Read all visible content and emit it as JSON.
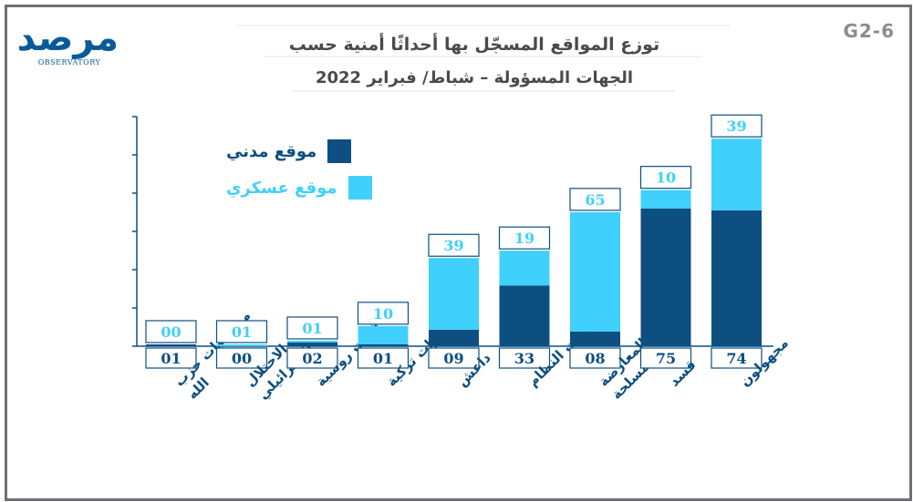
{
  "chart_code": "G2-6",
  "logo": {
    "word": "مرصد",
    "sub": "OBSERVATORY"
  },
  "title_line1": "توزع المواقع المسجّل بها أحداثًا أمنية حسب",
  "title_line2": "الجهات المسؤولة – شباط/ فبراير 2022",
  "colors": {
    "civil": "#0c4f80",
    "military": "#3fd0fc",
    "label_border": "#0c4f80",
    "military_text": "#3fd0fc",
    "axis": "#0c4f80"
  },
  "chart_data": {
    "type": "bar",
    "stacked": true,
    "categories": [
      "ميليشيات حزب الله",
      "الاحتلال الإسرائيلي",
      "قوات روسية",
      "قوات تركية",
      "داعش",
      "قوات النظام",
      "قوات المعارضة المسلحة",
      "قسد",
      "مجهولون"
    ],
    "series": [
      {
        "name": "موقع مدني",
        "values": [
          "01",
          "00",
          "02",
          "01",
          "09",
          "33",
          "08",
          "75",
          "74"
        ]
      },
      {
        "name": "موقع عسكري",
        "values": [
          "00",
          "01",
          "01",
          "10",
          "39",
          "19",
          "65",
          "10",
          "39"
        ]
      }
    ],
    "ylim": [
      0,
      125
    ],
    "legend_position": "top-left",
    "grid": false
  }
}
